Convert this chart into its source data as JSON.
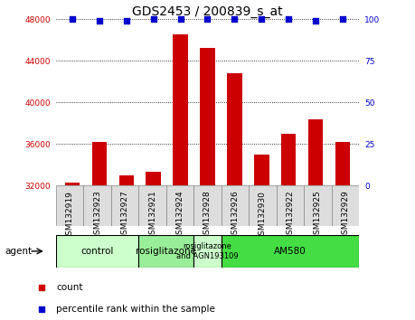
{
  "title": "GDS2453 / 200839_s_at",
  "samples": [
    "GSM132919",
    "GSM132923",
    "GSM132927",
    "GSM132921",
    "GSM132924",
    "GSM132928",
    "GSM132926",
    "GSM132930",
    "GSM132922",
    "GSM132925",
    "GSM132929"
  ],
  "counts": [
    32300,
    36200,
    33000,
    33300,
    46500,
    45200,
    42800,
    35000,
    37000,
    38400,
    36200
  ],
  "percentiles": [
    100,
    99,
    99,
    100,
    100,
    100,
    100,
    100,
    100,
    99,
    100
  ],
  "bar_color": "#cc0000",
  "dot_color": "#0000cc",
  "ylim_left": [
    32000,
    48000
  ],
  "ylim_right": [
    0,
    100
  ],
  "yticks_left": [
    32000,
    36000,
    40000,
    44000,
    48000
  ],
  "yticks_right": [
    0,
    25,
    50,
    75,
    100
  ],
  "groups": [
    {
      "label": "control",
      "start": 0,
      "end": 3,
      "color": "#ccffcc"
    },
    {
      "label": "rosiglitazone",
      "start": 3,
      "end": 5,
      "color": "#99ee99"
    },
    {
      "label": "rosiglitazone\nand AGN193109",
      "start": 5,
      "end": 6,
      "color": "#ccffcc"
    },
    {
      "label": "AM580",
      "start": 6,
      "end": 11,
      "color": "#44dd44"
    }
  ],
  "agent_label": "agent",
  "legend_count_label": "count",
  "legend_pct_label": "percentile rank within the sample",
  "bar_color_hex": "#cc0000",
  "dot_color_hex": "#0000cc",
  "title_fontsize": 10,
  "tick_label_fontsize": 6.5,
  "group_label_fontsize": 7.5,
  "legend_fontsize": 7.5
}
